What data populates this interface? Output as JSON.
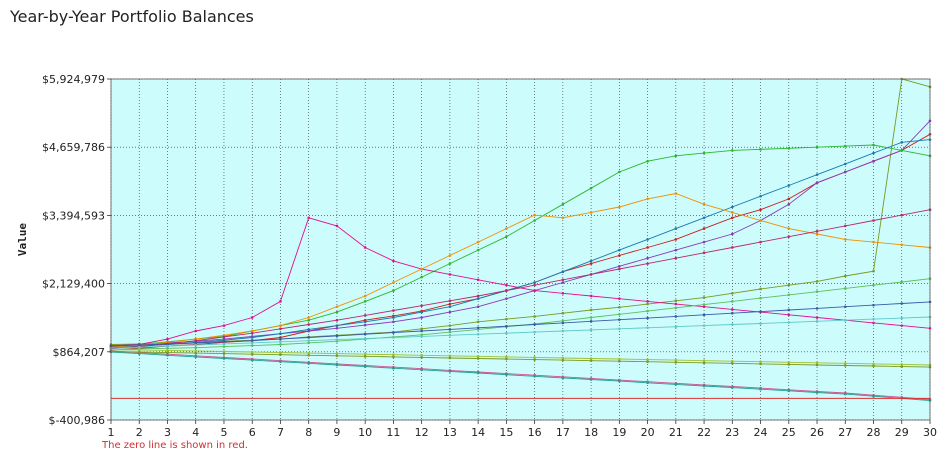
{
  "page": {
    "title": "Year-by-Year Portfolio Balances",
    "note": "The zero line is shown in red."
  },
  "chart_data": {
    "type": "line",
    "title": "Year-by-Year Portfolio Balances",
    "xlabel": "",
    "ylabel": "Value",
    "x": [
      1,
      2,
      3,
      4,
      5,
      6,
      7,
      8,
      9,
      10,
      11,
      12,
      13,
      14,
      15,
      16,
      17,
      18,
      19,
      20,
      21,
      22,
      23,
      24,
      25,
      26,
      27,
      28,
      29,
      30
    ],
    "xlim": [
      1,
      30
    ],
    "ylim": [
      -400986,
      5924979
    ],
    "y_ticks": [
      -400986,
      864207,
      2129400,
      3394593,
      4659786,
      5924979
    ],
    "y_tick_labels": [
      "$-400,986",
      "$864,207",
      "$2,129,400",
      "$3,394,593",
      "$4,659,786",
      "$5,924,979"
    ],
    "x_tick_labels": [
      "1",
      "2",
      "3",
      "4",
      "5",
      "6",
      "7",
      "8",
      "9",
      "10",
      "11",
      "12",
      "13",
      "14",
      "15",
      "16",
      "17",
      "18",
      "19",
      "20",
      "21",
      "22",
      "23",
      "24",
      "25",
      "26",
      "27",
      "28",
      "29",
      "30"
    ],
    "grid": true,
    "background_color": "#ccfcfc",
    "zero_line": {
      "value": 0,
      "color": "#e03030"
    },
    "palette": [
      "#7a9a20",
      "#cc2020",
      "#8a3ab8",
      "#2ab82a",
      "#1a7ab0",
      "#e01090",
      "#f09000",
      "#5ac05a",
      "#b82a6a",
      "#3a5aa8",
      "#60c8c8",
      "#a0c030",
      "#d05090",
      "#20a090"
    ],
    "series": [
      {
        "values": [
          1000000,
          1010000,
          1000000,
          1030000,
          1060000,
          1080000,
          1100000,
          1140000,
          1170000,
          1200000,
          1230000,
          1290000,
          1350000,
          1420000,
          1470000,
          1520000,
          1580000,
          1640000,
          1690000,
          1750000,
          1810000,
          1870000,
          1950000,
          2030000,
          2100000,
          2170000,
          2270000,
          2360000,
          5924979,
          5780000
        ]
      },
      {
        "values": [
          950000,
          930000,
          970000,
          1000000,
          1040000,
          1070000,
          1130000,
          1250000,
          1350000,
          1450000,
          1530000,
          1620000,
          1750000,
          1850000,
          2000000,
          2150000,
          2350000,
          2500000,
          2650000,
          2800000,
          2950000,
          3150000,
          3350000,
          3500000,
          3700000,
          4000000,
          4200000,
          4400000,
          4600000,
          4900000
        ]
      },
      {
        "values": [
          980000,
          1000000,
          1030000,
          1060000,
          1100000,
          1150000,
          1200000,
          1250000,
          1300000,
          1360000,
          1420000,
          1500000,
          1600000,
          1700000,
          1850000,
          2000000,
          2150000,
          2300000,
          2450000,
          2600000,
          2750000,
          2900000,
          3050000,
          3300000,
          3600000,
          4000000,
          4200000,
          4400000,
          4600000,
          5150000
        ]
      },
      {
        "values": [
          960000,
          1000000,
          1050000,
          1100000,
          1150000,
          1250000,
          1350000,
          1450000,
          1600000,
          1800000,
          2000000,
          2250000,
          2500000,
          2750000,
          3000000,
          3300000,
          3600000,
          3900000,
          4200000,
          4400000,
          4500000,
          4550000,
          4600000,
          4620000,
          4640000,
          4660000,
          4680000,
          4700000,
          4600000,
          4500000
        ]
      },
      {
        "values": [
          940000,
          970000,
          1000000,
          1040000,
          1080000,
          1130000,
          1200000,
          1280000,
          1350000,
          1420000,
          1500000,
          1600000,
          1700000,
          1850000,
          2000000,
          2150000,
          2350000,
          2550000,
          2750000,
          2950000,
          3150000,
          3350000,
          3550000,
          3750000,
          3950000,
          4150000,
          4350000,
          4550000,
          4750000,
          4800000
        ]
      },
      {
        "values": [
          960000,
          1000000,
          1100000,
          1250000,
          1350000,
          1500000,
          1800000,
          3350000,
          3200000,
          2800000,
          2550000,
          2400000,
          2300000,
          2200000,
          2100000,
          2000000,
          1950000,
          1900000,
          1850000,
          1800000,
          1750000,
          1700000,
          1650000,
          1600000,
          1550000,
          1500000,
          1450000,
          1400000,
          1350000,
          1300000
        ]
      },
      {
        "values": [
          950000,
          990000,
          1040000,
          1100000,
          1170000,
          1250000,
          1350000,
          1500000,
          1700000,
          1900000,
          2150000,
          2400000,
          2650000,
          2900000,
          3150000,
          3400000,
          3350000,
          3450000,
          3550000,
          3700000,
          3800000,
          3600000,
          3450000,
          3300000,
          3150000,
          3050000,
          2950000,
          2900000,
          2850000,
          2800000
        ]
      },
      {
        "values": [
          900000,
          920000,
          930000,
          940000,
          960000,
          980000,
          1000000,
          1030000,
          1060000,
          1100000,
          1140000,
          1180000,
          1230000,
          1280000,
          1330000,
          1380000,
          1440000,
          1500000,
          1560000,
          1620000,
          1680000,
          1740000,
          1800000,
          1860000,
          1920000,
          1980000,
          2040000,
          2100000,
          2160000,
          2220000
        ]
      },
      {
        "values": [
          920000,
          960000,
          1010000,
          1070000,
          1140000,
          1210000,
          1290000,
          1370000,
          1450000,
          1540000,
          1630000,
          1720000,
          1810000,
          1900000,
          2000000,
          2100000,
          2200000,
          2300000,
          2400000,
          2500000,
          2600000,
          2700000,
          2800000,
          2900000,
          3000000,
          3100000,
          3200000,
          3300000,
          3400000,
          3500000
        ]
      },
      {
        "values": [
          970000,
          990000,
          1010000,
          1030000,
          1050000,
          1070000,
          1100000,
          1130000,
          1160000,
          1190000,
          1220000,
          1250000,
          1280000,
          1310000,
          1340000,
          1370000,
          1400000,
          1430000,
          1460000,
          1490000,
          1520000,
          1550000,
          1580000,
          1610000,
          1640000,
          1670000,
          1700000,
          1730000,
          1760000,
          1790000
        ]
      },
      {
        "values": [
          930000,
          950000,
          970000,
          990000,
          1010000,
          1030000,
          1050000,
          1070000,
          1090000,
          1110000,
          1130000,
          1150000,
          1170000,
          1190000,
          1210000,
          1230000,
          1250000,
          1270000,
          1290000,
          1310000,
          1330000,
          1350000,
          1370000,
          1390000,
          1410000,
          1430000,
          1450000,
          1470000,
          1490000,
          1510000
        ]
      },
      {
        "values": [
          900000,
          900000,
          890000,
          880000,
          870000,
          860000,
          850000,
          840000,
          830000,
          820000,
          810000,
          800000,
          790000,
          780000,
          770000,
          760000,
          750000,
          740000,
          730000,
          720000,
          710000,
          700000,
          690000,
          680000,
          670000,
          660000,
          650000,
          640000,
          630000,
          620000
        ]
      },
      {
        "values": [
          880000,
          850000,
          820000,
          790000,
          760000,
          730000,
          700000,
          670000,
          640000,
          610000,
          580000,
          550000,
          520000,
          490000,
          460000,
          430000,
          400000,
          370000,
          340000,
          310000,
          280000,
          250000,
          220000,
          190000,
          160000,
          130000,
          100000,
          60000,
          20000,
          -20000
        ]
      },
      {
        "values": [
          860000,
          830000,
          800000,
          770000,
          740000,
          710000,
          680000,
          650000,
          620000,
          590000,
          560000,
          530000,
          500000,
          470000,
          440000,
          410000,
          380000,
          350000,
          320000,
          290000,
          260000,
          230000,
          200000,
          170000,
          140000,
          110000,
          80000,
          40000,
          0,
          -40000
        ]
      },
      {
        "values": [
          870000,
          860000,
          850000,
          840000,
          830000,
          820000,
          810000,
          800000,
          790000,
          780000,
          770000,
          760000,
          750000,
          740000,
          730000,
          720000,
          710000,
          700000,
          690000,
          680000,
          670000,
          660000,
          650000,
          640000,
          630000,
          620000,
          610000,
          600000,
          590000,
          580000
        ]
      }
    ]
  }
}
